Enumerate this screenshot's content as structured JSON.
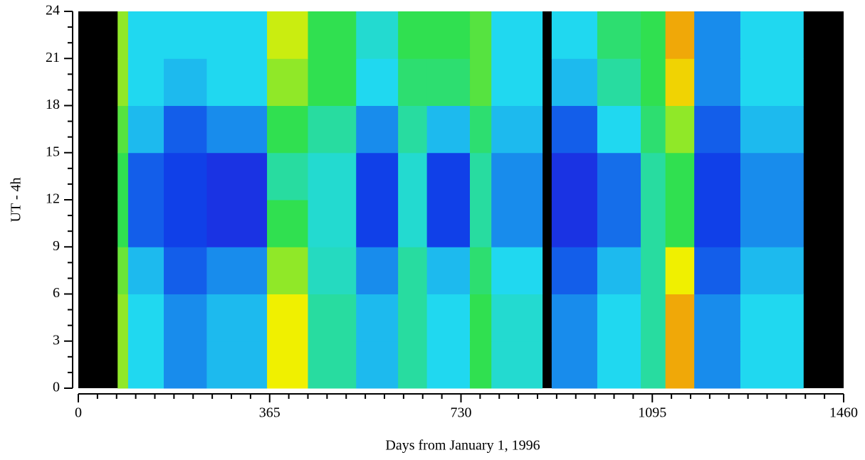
{
  "chart_data": {
    "type": "heatmap",
    "xlabel": "Days from January 1, 1996",
    "ylabel": "UT - 4h",
    "xlim": [
      0,
      1460
    ],
    "ylim": [
      0,
      24
    ],
    "xticks": [
      0,
      365,
      730,
      1095,
      1460
    ],
    "yticks": [
      0,
      3,
      6,
      9,
      12,
      15,
      18,
      21,
      24
    ],
    "x_minor_per_major": 10,
    "y_minor_per_major": 3,
    "background": "#000000",
    "zlim": [
      0,
      5
    ],
    "colorscale": [
      "#4000d0",
      "#1040e8",
      "#20d8f0",
      "#30e050",
      "#f0f000",
      "#f06010"
    ],
    "x_bins": [
      75,
      95,
      163,
      245,
      360,
      438,
      530,
      610,
      665,
      747,
      788,
      885,
      903,
      990,
      1073,
      1120,
      1175,
      1263,
      1383
    ],
    "y_bins": [
      0,
      3,
      6,
      9,
      12,
      15,
      18,
      21,
      24
    ],
    "values": [
      [
        3.5,
        2,
        1.5,
        1.8,
        4,
        2.5,
        1.8,
        2.5,
        2,
        3,
        2.2,
        null,
        1.5,
        2,
        2.5,
        4.5,
        1.5,
        2
      ],
      [
        3.5,
        2,
        1.5,
        1.8,
        4,
        2.5,
        1.8,
        2.5,
        2,
        3,
        2.2,
        null,
        1.5,
        2,
        2.5,
        4.5,
        1.5,
        2
      ],
      [
        3.3,
        1.8,
        1.2,
        1.5,
        3.5,
        2.3,
        1.5,
        2.5,
        1.8,
        2.8,
        2,
        null,
        1.2,
        1.8,
        2.5,
        4,
        1.2,
        1.8
      ],
      [
        3,
        1.2,
        1,
        0.8,
        3,
        2.2,
        1,
        2.2,
        1,
        2.5,
        1.5,
        null,
        0.8,
        1.3,
        2.5,
        3,
        1,
        1.5
      ],
      [
        3,
        1.2,
        1,
        0.8,
        2.5,
        2.2,
        1,
        2.2,
        1,
        2.5,
        1.5,
        null,
        0.8,
        1.3,
        2.5,
        3,
        1,
        1.5
      ],
      [
        3.2,
        1.8,
        1.2,
        1.5,
        3,
        2.5,
        1.5,
        2.5,
        1.8,
        2.8,
        1.8,
        null,
        1.2,
        2,
        2.8,
        3.5,
        1.2,
        1.8
      ],
      [
        3.5,
        2,
        1.8,
        2,
        3.5,
        3,
        2,
        2.8,
        2.8,
        3.2,
        2,
        null,
        1.8,
        2.5,
        3,
        4.2,
        1.5,
        2
      ],
      [
        3.5,
        2,
        2,
        2,
        3.8,
        3,
        2.2,
        3,
        3,
        3.2,
        2,
        null,
        2,
        2.8,
        3,
        4.5,
        1.5,
        2
      ]
    ]
  }
}
